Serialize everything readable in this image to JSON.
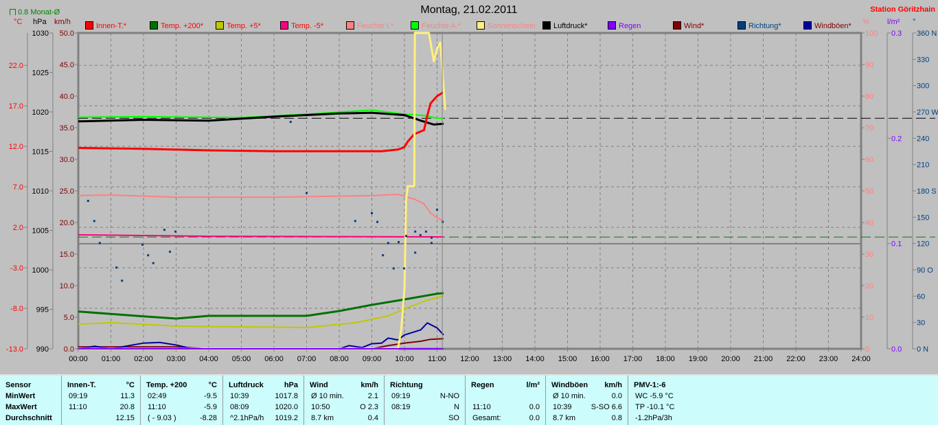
{
  "header": {
    "title": "Montag, 21.02.2011",
    "station": "Station Göritzhain",
    "monthly_avg": "0.8 Monat-Ø",
    "units_left": [
      {
        "label": "°C",
        "color": "#ff0000"
      },
      {
        "label": "hPa",
        "color": "#000000"
      },
      {
        "label": "km/h",
        "color": "#800000"
      }
    ],
    "units_right": [
      {
        "label": "%",
        "color": "#ff8080"
      },
      {
        "label": "l/m²",
        "color": "#8000ff"
      },
      {
        "label": "°",
        "color": "#004080"
      }
    ]
  },
  "legend": [
    {
      "label": "Innen-T.*",
      "swatch": "#ff0000",
      "text_color": "#ff0000"
    },
    {
      "label": "Temp. +200*",
      "swatch": "#007000",
      "text_color": "#ff0000"
    },
    {
      "label": "Temp. +5*",
      "swatch": "#c0c800",
      "text_color": "#ff0000"
    },
    {
      "label": "Temp. -5*",
      "swatch": "#ff0080",
      "text_color": "#ff0000"
    },
    {
      "label": "Feuchte I.*",
      "swatch": "#ff8080",
      "text_color": "#ff8080"
    },
    {
      "label": "Feuchte A.*",
      "swatch": "#00ff00",
      "text_color": "#ff8080"
    },
    {
      "label": "Sonnenschein",
      "swatch": "#fff080",
      "text_color": "#ff8080"
    },
    {
      "label": "Luftdruck*",
      "swatch": "#000000",
      "text_color": "#000000"
    },
    {
      "label": "Regen",
      "swatch": "#8000ff",
      "text_color": "#8000ff"
    },
    {
      "label": "Wind*",
      "swatch": "#800000",
      "text_color": "#800000"
    },
    {
      "label": "Richtung*",
      "swatch": "#004080",
      "text_color": "#004080"
    },
    {
      "label": "Windböen*",
      "swatch": "#0000a0",
      "text_color": "#800000"
    }
  ],
  "chart_data": {
    "type": "line",
    "x_range": [
      "00:00",
      "24:00"
    ],
    "x_ticks": [
      "00:00",
      "01:00",
      "02:00",
      "03:00",
      "04:00",
      "05:00",
      "06:00",
      "07:00",
      "08:00",
      "09:00",
      "10:00",
      "11:00",
      "12:00",
      "13:00",
      "14:00",
      "15:00",
      "16:00",
      "17:00",
      "18:00",
      "19:00",
      "20:00",
      "21:00",
      "22:00",
      "23:00",
      "24:00"
    ],
    "grid": true,
    "current_time": 11.16,
    "axes": {
      "temp": {
        "range": [
          -13,
          26
        ],
        "ticks": [
          "22.0",
          "17.0",
          "12.0",
          "7.0",
          "2.0",
          "-3.0",
          "-8.0",
          "-13.0"
        ],
        "tick_values": [
          22,
          17,
          12,
          7,
          2,
          -3,
          -8,
          -13
        ],
        "color": "#ff0000"
      },
      "pressure": {
        "range": [
          990,
          1030
        ],
        "ticks": [
          "1030",
          "1025",
          "1020",
          "1015",
          "1010",
          "1005",
          "1000",
          "995",
          "990"
        ],
        "tick_values": [
          1030,
          1025,
          1020,
          1015,
          1010,
          1005,
          1000,
          995,
          990
        ],
        "color": "#000000"
      },
      "wind": {
        "range": [
          0,
          50
        ],
        "ticks": [
          "50.0",
          "45.0",
          "40.0",
          "35.0",
          "30.0",
          "25.0",
          "20.0",
          "15.0",
          "10.0",
          "5.0",
          "0.0"
        ],
        "tick_values": [
          50,
          45,
          40,
          35,
          30,
          25,
          20,
          15,
          10,
          5,
          0
        ],
        "color": "#800000"
      },
      "humidity": {
        "range": [
          0,
          100
        ],
        "ticks": [
          "100",
          "90",
          "80",
          "70",
          "60",
          "50",
          "40",
          "30",
          "20",
          "10",
          "0"
        ],
        "tick_values": [
          100,
          90,
          80,
          70,
          60,
          50,
          40,
          30,
          20,
          10,
          0
        ],
        "color": "#ff8080"
      },
      "rain": {
        "range": [
          0,
          0.3
        ],
        "ticks": [
          "0.3",
          "0.2",
          "0.1",
          "0.0"
        ],
        "tick_values": [
          0.3,
          0.2,
          0.1,
          0
        ],
        "color": "#8000ff"
      },
      "direction": {
        "range": [
          0,
          360
        ],
        "ticks": [
          "360 N",
          "330",
          "300",
          "270 W",
          "240",
          "210",
          "180 S",
          "150",
          "120",
          "90  O",
          "60",
          "30",
          "0   N"
        ],
        "tick_values": [
          360,
          330,
          300,
          270,
          240,
          210,
          180,
          150,
          120,
          90,
          60,
          30,
          0
        ],
        "color": "#004080"
      }
    },
    "reference_lines": [
      {
        "axis": "pressure",
        "value": 1019.2,
        "color": "#000000"
      },
      {
        "axis": "temp",
        "value": 0.8,
        "color": "#008000"
      }
    ],
    "series": [
      {
        "name": "Feuchte I.*",
        "axis": "humidity",
        "color": "#ff8080",
        "width": 2,
        "points": [
          [
            0,
            48.5
          ],
          [
            1,
            48.7
          ],
          [
            3,
            48.0
          ],
          [
            6,
            48.0
          ],
          [
            9,
            48.5
          ],
          [
            9.8,
            48.9
          ],
          [
            10.3,
            47.4
          ],
          [
            10.6,
            45.9
          ],
          [
            10.8,
            43.0
          ],
          [
            11.0,
            41.5
          ],
          [
            11.2,
            40.4
          ]
        ]
      },
      {
        "name": "Temp. -5*",
        "axis": "temp",
        "color": "#ff0080",
        "width": 2,
        "points": [
          [
            0,
            1.07
          ],
          [
            4,
            0.9
          ],
          [
            8,
            0.85
          ],
          [
            11.2,
            0.82
          ]
        ]
      },
      {
        "name": "Feuchte A.*",
        "axis": "humidity",
        "color": "#00ff00",
        "width": 2,
        "points": [
          [
            0,
            73.3
          ],
          [
            2,
            73.5
          ],
          [
            5,
            73.2
          ],
          [
            7,
            74.3
          ],
          [
            9,
            75.6
          ],
          [
            10,
            74.3
          ],
          [
            10.6,
            73.9
          ],
          [
            11,
            73.0
          ],
          [
            11.2,
            73.0
          ]
        ]
      },
      {
        "name": "Luftdruck*",
        "axis": "pressure",
        "color": "#000000",
        "width": 3,
        "points": [
          [
            0,
            1018.8
          ],
          [
            2,
            1019.0
          ],
          [
            4,
            1018.9
          ],
          [
            6,
            1019.4
          ],
          [
            8,
            1019.8
          ],
          [
            9,
            1019.9
          ],
          [
            10,
            1019.6
          ],
          [
            10.5,
            1018.9
          ],
          [
            10.9,
            1018.4
          ],
          [
            11.2,
            1018.5
          ]
        ]
      },
      {
        "name": "Innen-T.*",
        "axis": "temp",
        "color": "#ff0000",
        "width": 3,
        "points": [
          [
            0,
            11.8
          ],
          [
            2,
            11.7
          ],
          [
            4,
            11.5
          ],
          [
            6,
            11.4
          ],
          [
            8,
            11.4
          ],
          [
            9.3,
            11.4
          ],
          [
            9.8,
            11.6
          ],
          [
            10.0,
            11.9
          ],
          [
            10.1,
            12.6
          ],
          [
            10.3,
            13.5
          ],
          [
            10.6,
            14.0
          ],
          [
            10.7,
            15.8
          ],
          [
            10.8,
            17.3
          ],
          [
            11.0,
            18.2
          ],
          [
            11.2,
            18.7
          ]
        ]
      },
      {
        "name": "Temp. +200*",
        "axis": "temp",
        "color": "#007000",
        "width": 3,
        "points": [
          [
            0,
            -8.4
          ],
          [
            1,
            -8.7
          ],
          [
            2,
            -9.0
          ],
          [
            3,
            -9.27
          ],
          [
            4,
            -8.93
          ],
          [
            7,
            -8.93
          ],
          [
            8,
            -8.34
          ],
          [
            9,
            -7.57
          ],
          [
            10,
            -6.9
          ],
          [
            11,
            -6.2
          ],
          [
            11.2,
            -6.13
          ]
        ]
      },
      {
        "name": "Temp. +5*",
        "axis": "temp",
        "color": "#c0c800",
        "width": 2,
        "points": [
          [
            0,
            -9.95
          ],
          [
            1,
            -9.78
          ],
          [
            3,
            -10.2
          ],
          [
            7,
            -10.37
          ],
          [
            8.5,
            -9.78
          ],
          [
            9.5,
            -8.93
          ],
          [
            10,
            -8.08
          ],
          [
            10.7,
            -6.98
          ],
          [
            11.2,
            -6.47
          ]
        ]
      },
      {
        "name": "Wind*",
        "axis": "wind",
        "color": "#800000",
        "width": 2,
        "points": [
          [
            0,
            0.3
          ],
          [
            3,
            0.3
          ],
          [
            4,
            0
          ],
          [
            9,
            0
          ],
          [
            9.5,
            0.5
          ],
          [
            10,
            0.9
          ],
          [
            10.5,
            1.2
          ],
          [
            10.8,
            1.5
          ],
          [
            11.2,
            1.6
          ]
        ]
      },
      {
        "name": "Windböen*",
        "axis": "wind",
        "color": "#0000a0",
        "width": 2,
        "points": [
          [
            0,
            0
          ],
          [
            0.5,
            0.4
          ],
          [
            1,
            0
          ],
          [
            2,
            0.9
          ],
          [
            2.5,
            1.0
          ],
          [
            3,
            0.6
          ],
          [
            3.5,
            0
          ],
          [
            8.0,
            0
          ],
          [
            8.3,
            0.5
          ],
          [
            8.7,
            0.2
          ],
          [
            9,
            0.8
          ],
          [
            9.3,
            0.9
          ],
          [
            9.5,
            1.7
          ],
          [
            9.8,
            1.4
          ],
          [
            10.0,
            2.2
          ],
          [
            10.5,
            3.0
          ],
          [
            10.7,
            4.1
          ],
          [
            11.0,
            3.3
          ],
          [
            11.2,
            2.2
          ]
        ]
      },
      {
        "name": "Sonnenschein",
        "axis": "humidity",
        "color": "#fff080",
        "width": 3,
        "points": [
          [
            0,
            0
          ],
          [
            9.8,
            0
          ],
          [
            9.9,
            6
          ],
          [
            10.0,
            19
          ],
          [
            10.05,
            47
          ],
          [
            10.1,
            51.5
          ],
          [
            10.3,
            51.5
          ],
          [
            10.32,
            100
          ],
          [
            10.75,
            100
          ],
          [
            10.9,
            91
          ],
          [
            11.0,
            95
          ],
          [
            11.1,
            97
          ],
          [
            11.25,
            75.6
          ]
        ]
      },
      {
        "name": "Regen",
        "axis": "rain",
        "color": "#8000ff",
        "width": 2,
        "points": [
          [
            0,
            0
          ],
          [
            11.2,
            0
          ]
        ]
      }
    ],
    "scatter": {
      "name": "Richtung*",
      "axis": "direction",
      "color": "#004080",
      "points": [
        [
          0.29,
          169
        ],
        [
          0.48,
          146
        ],
        [
          0.65,
          121
        ],
        [
          1.16,
          93
        ],
        [
          1.33,
          78
        ],
        [
          1.96,
          119
        ],
        [
          2.13,
          107
        ],
        [
          2.29,
          98
        ],
        [
          2.63,
          136
        ],
        [
          2.8,
          111
        ],
        [
          2.97,
          134
        ],
        [
          6.5,
          259
        ],
        [
          6.99,
          178
        ],
        [
          8.48,
          146
        ],
        [
          8.99,
          155
        ],
        [
          9.16,
          145
        ],
        [
          9.33,
          107
        ],
        [
          9.49,
          121
        ],
        [
          9.66,
          92
        ],
        [
          9.81,
          122
        ],
        [
          9.98,
          92
        ],
        [
          10.04,
          129
        ],
        [
          10.32,
          134
        ],
        [
          10.32,
          110
        ],
        [
          10.48,
          130
        ],
        [
          10.65,
          134
        ],
        [
          10.82,
          121
        ],
        [
          10.82,
          127
        ],
        [
          10.99,
          159
        ],
        [
          11.16,
          145
        ]
      ]
    }
  },
  "table": {
    "columns": [
      {
        "head": [
          "Sensor",
          ""
        ],
        "rows": [
          [
            "MinWert",
            ""
          ],
          [
            "MaxWert",
            ""
          ],
          [
            "Durchschnitt",
            ""
          ]
        ],
        "labels_bold": true
      },
      {
        "head": [
          "Innen-T.",
          "°C"
        ],
        "rows": [
          [
            "09:19",
            "11.3"
          ],
          [
            "11:10",
            "20.8"
          ],
          [
            "",
            "12.15"
          ]
        ]
      },
      {
        "head": [
          "Temp. +200",
          "°C"
        ],
        "rows": [
          [
            "02:49",
            "-9.5"
          ],
          [
            "11:10",
            "-5.9"
          ],
          [
            "( - 9.03 )",
            "-8.28"
          ]
        ]
      },
      {
        "head": [
          "Luftdruck",
          "hPa"
        ],
        "rows": [
          [
            "10:39",
            "1017.8"
          ],
          [
            "08:09",
            "1020.0"
          ],
          [
            "^2.1hPa/h",
            "1019.2"
          ]
        ]
      },
      {
        "head": [
          "Wind",
          "km/h"
        ],
        "rows": [
          [
            "Ø 10 min.",
            "2.1"
          ],
          [
            "10:50",
            "O 2.3"
          ],
          [
            "8.7 km",
            "0.4"
          ]
        ]
      },
      {
        "head": [
          "Richtung",
          ""
        ],
        "rows": [
          [
            "09:19",
            "N-NO"
          ],
          [
            "08:19",
            "N"
          ],
          [
            "",
            "SO"
          ]
        ]
      },
      {
        "head": [
          "Regen",
          "l/m²"
        ],
        "rows": [
          [
            "",
            ""
          ],
          [
            "11:10",
            "0.0"
          ],
          [
            "Gesamt:",
            "0.0"
          ]
        ]
      },
      {
        "head": [
          "Windböen",
          "km/h"
        ],
        "rows": [
          [
            "Ø 10 min.",
            "0.0"
          ],
          [
            "10:39",
            "S-SO 6.6"
          ],
          [
            "8.7 km",
            "0.8"
          ]
        ]
      },
      {
        "head": [
          "PMV-1:-6",
          ""
        ],
        "rows": [
          [
            "WC -5.9 °C",
            ""
          ],
          [
            "TP -10.1 °C",
            ""
          ],
          [
            "-1.2hPa/3h",
            ""
          ]
        ]
      }
    ]
  }
}
